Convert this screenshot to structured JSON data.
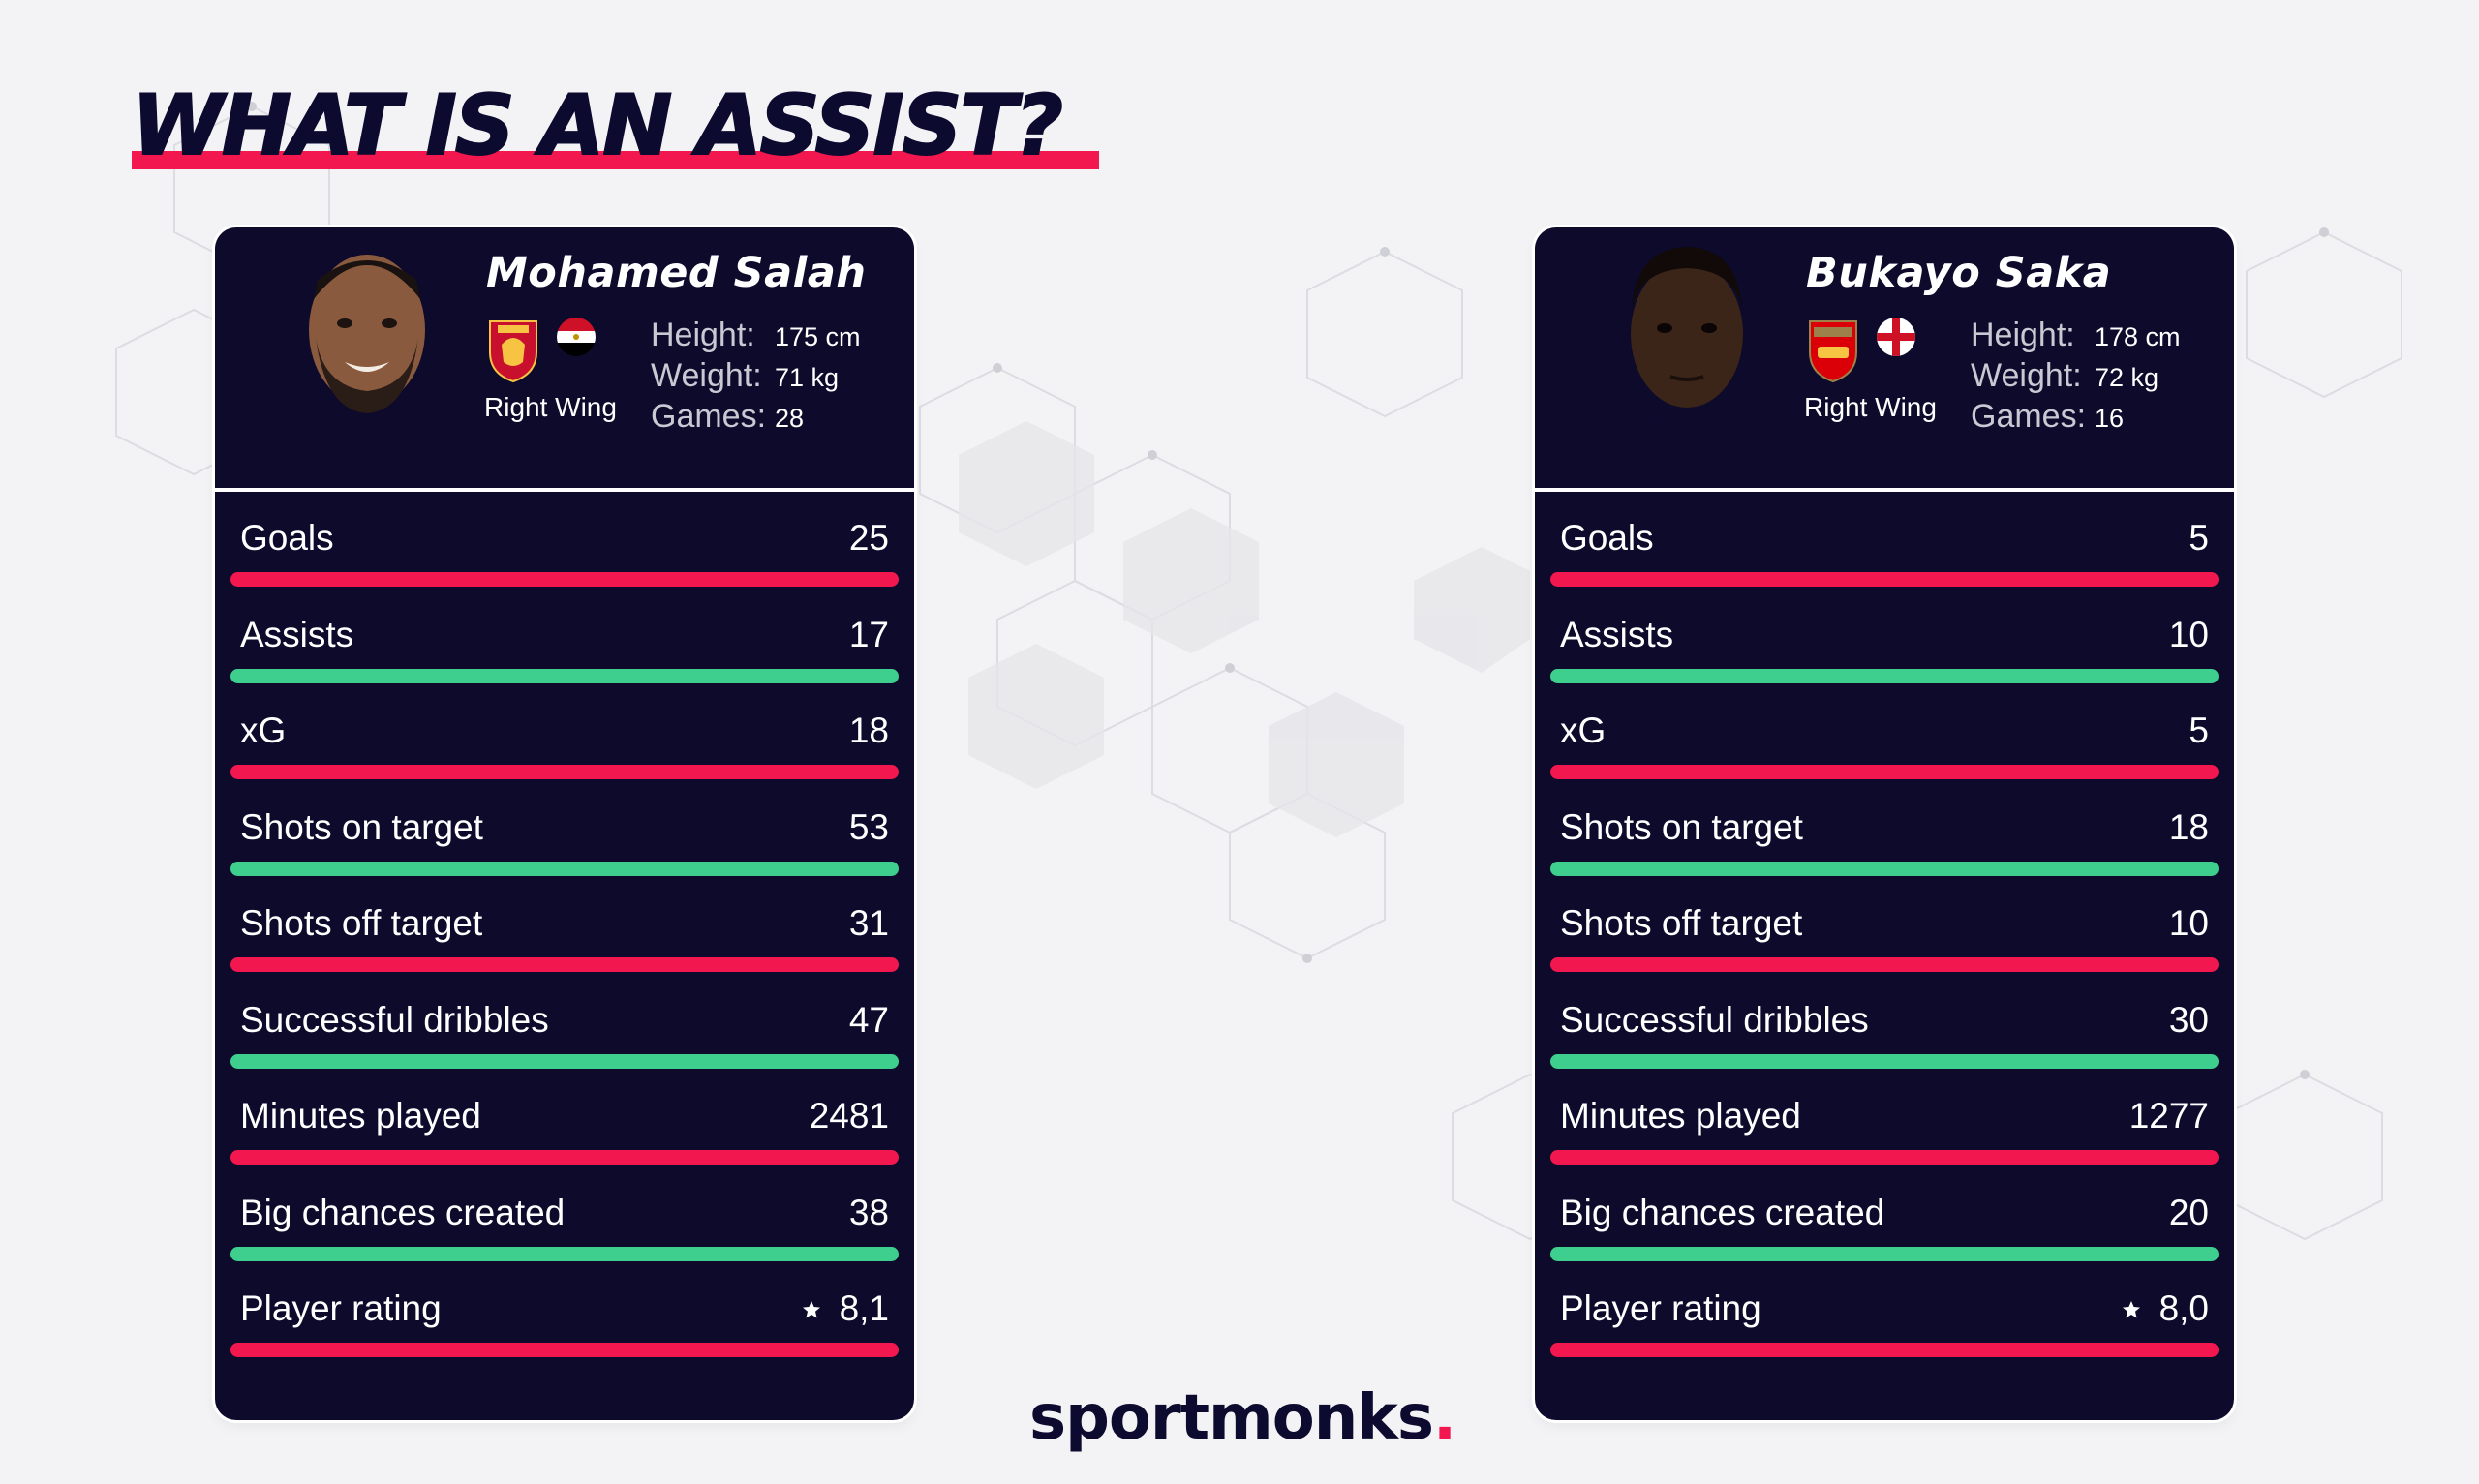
{
  "header": {
    "title": "WHAT IS AN ASSIST?"
  },
  "colors": {
    "accent_red": "#f2174e",
    "accent_green": "#3ecf8e",
    "card_bg": "#0d0a2c",
    "title_ink": "#0c0a2e"
  },
  "players": [
    {
      "name": "Mohamed Salah",
      "club": "Liverpool",
      "club_badge_icon": "liverpool-crest-icon",
      "nation_flag_icon": "egypt-flag-icon",
      "position": "Right Wing",
      "info": [
        {
          "label": "Height:",
          "value": "175 cm"
        },
        {
          "label": "Weight:",
          "value": "71 kg"
        },
        {
          "label": "Games:",
          "value": "28"
        }
      ],
      "stats": [
        {
          "label": "Goals",
          "value": "25",
          "bar": "red"
        },
        {
          "label": "Assists",
          "value": "17",
          "bar": "green"
        },
        {
          "label": "xG",
          "value": "18",
          "bar": "red"
        },
        {
          "label": "Shots on target",
          "value": "53",
          "bar": "green"
        },
        {
          "label": "Shots off target",
          "value": "31",
          "bar": "red"
        },
        {
          "label": "Successful dribbles",
          "value": "47",
          "bar": "green"
        },
        {
          "label": "Minutes played",
          "value": "2481",
          "bar": "red"
        },
        {
          "label": "Big chances created",
          "value": "38",
          "bar": "green"
        },
        {
          "label": "Player rating",
          "value": "8,1",
          "bar": "red",
          "icon": "star-icon"
        }
      ]
    },
    {
      "name": "Bukayo Saka",
      "club": "Arsenal",
      "club_badge_icon": "arsenal-crest-icon",
      "nation_flag_icon": "england-flag-icon",
      "position": "Right Wing",
      "info": [
        {
          "label": "Height:",
          "value": "178 cm"
        },
        {
          "label": "Weight:",
          "value": "72 kg"
        },
        {
          "label": "Games:",
          "value": "16"
        }
      ],
      "stats": [
        {
          "label": "Goals",
          "value": "5",
          "bar": "red"
        },
        {
          "label": "Assists",
          "value": "10",
          "bar": "green"
        },
        {
          "label": "xG",
          "value": "5",
          "bar": "red"
        },
        {
          "label": "Shots on target",
          "value": "18",
          "bar": "green"
        },
        {
          "label": "Shots off target",
          "value": "10",
          "bar": "red"
        },
        {
          "label": "Successful dribbles",
          "value": "30",
          "bar": "green"
        },
        {
          "label": "Minutes played",
          "value": "1277",
          "bar": "red"
        },
        {
          "label": "Big chances created",
          "value": "20",
          "bar": "green"
        },
        {
          "label": "Player rating",
          "value": "8,0",
          "bar": "red",
          "icon": "star-icon"
        }
      ]
    }
  ],
  "footer": {
    "logo_text": "sportmonks",
    "logo_dot": "."
  }
}
